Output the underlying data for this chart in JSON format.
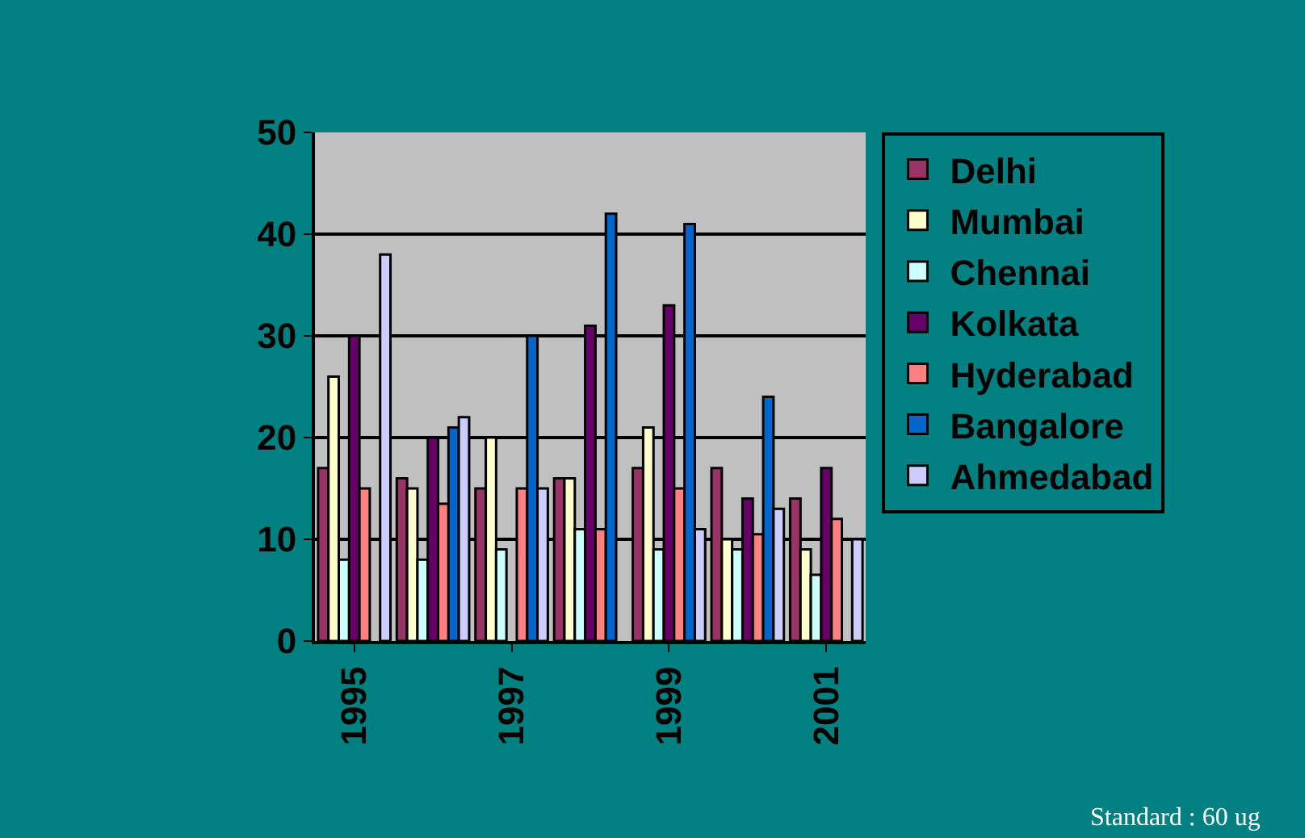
{
  "chart_data": {
    "type": "bar",
    "categories": [
      "1995",
      null,
      "1997",
      null,
      "1999",
      null,
      "2001"
    ],
    "series": [
      {
        "name": "Delhi",
        "color": "#993366",
        "values": [
          17,
          16,
          15,
          16,
          17,
          17,
          14
        ]
      },
      {
        "name": "Mumbai",
        "color": "#ffffcc",
        "values": [
          26,
          15,
          20,
          16,
          21,
          10,
          9
        ]
      },
      {
        "name": "Chennai",
        "color": "#ccffff",
        "values": [
          8,
          8,
          9,
          11,
          9,
          9,
          6.5
        ]
      },
      {
        "name": "Kolkata",
        "color": "#660066",
        "values": [
          30,
          20,
          null,
          31,
          33,
          14,
          17
        ]
      },
      {
        "name": "Hyderabad",
        "color": "#ff8080",
        "values": [
          15,
          13.5,
          15,
          11,
          15,
          10.5,
          12
        ]
      },
      {
        "name": "Bangalore",
        "color": "#0066cc",
        "values": [
          null,
          21,
          30,
          42,
          41,
          24,
          null
        ]
      },
      {
        "name": "Ahmedabad",
        "color": "#ccccff",
        "values": [
          38,
          22,
          15,
          null,
          11,
          13,
          10
        ]
      }
    ],
    "ylim": [
      0,
      50
    ],
    "yticks": [
      0,
      10,
      20,
      30,
      40,
      50
    ],
    "grid": "y",
    "legend": "right",
    "annotations": [
      "Standard : 60 ug"
    ]
  }
}
